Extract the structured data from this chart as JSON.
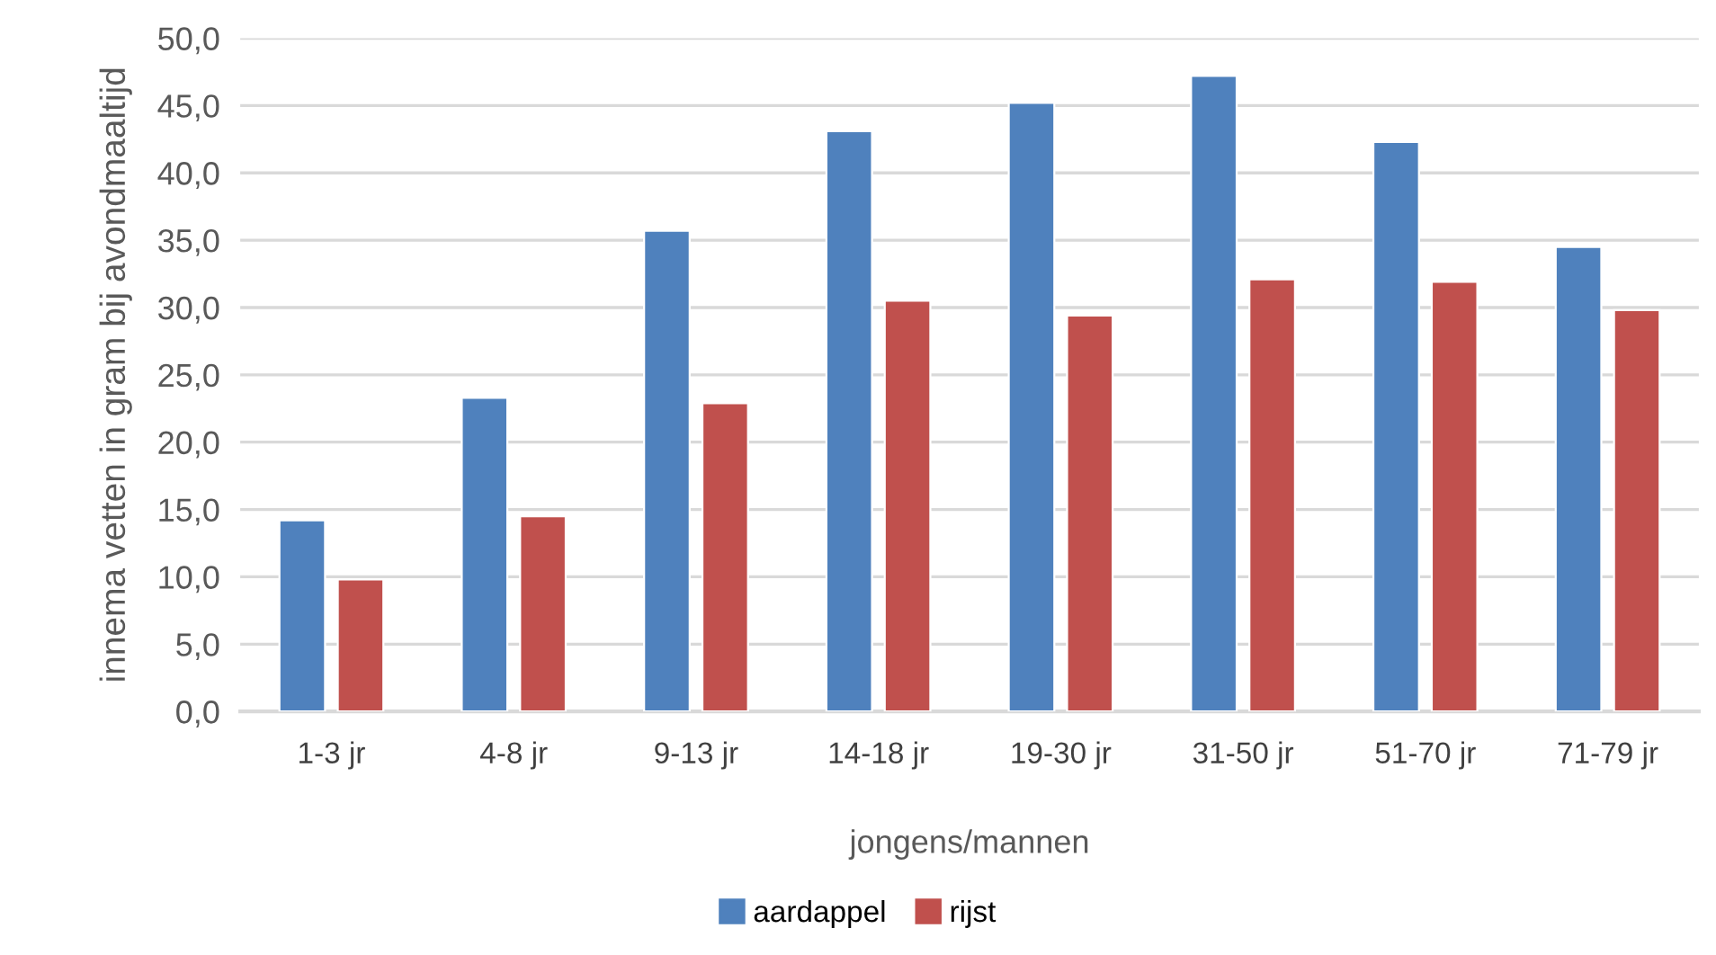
{
  "chart_data": {
    "type": "bar",
    "xlabel": "jongens/mannen",
    "ylabel": "innema vetten in gram bij avondmaaltijd",
    "categories": [
      "1-3 jr",
      "4-8 jr",
      "9-13 jr",
      "14-18 jr",
      "19-30 jr",
      "31-50 jr",
      "51-70 jr",
      "71-79 jr"
    ],
    "series": [
      {
        "name": "aardappel",
        "color": "#4f81bd",
        "values": [
          14.2,
          23.3,
          35.7,
          43.1,
          45.2,
          47.2,
          42.3,
          34.5
        ]
      },
      {
        "name": "rijst",
        "color": "#c0504d",
        "values": [
          9.8,
          14.5,
          22.9,
          30.5,
          29.4,
          32.1,
          31.9,
          29.8
        ]
      }
    ],
    "ylim": [
      0,
      50
    ],
    "yticks": [
      {
        "value": 0,
        "label": "0,0"
      },
      {
        "value": 5,
        "label": "5,0"
      },
      {
        "value": 10,
        "label": "10,0"
      },
      {
        "value": 15,
        "label": "15,0"
      },
      {
        "value": 20,
        "label": "20,0"
      },
      {
        "value": 25,
        "label": "25,0"
      },
      {
        "value": 30,
        "label": "30,0"
      },
      {
        "value": 35,
        "label": "35,0"
      },
      {
        "value": 40,
        "label": "40,0"
      },
      {
        "value": 45,
        "label": "45,0"
      },
      {
        "value": 50,
        "label": "50,0"
      }
    ],
    "grid": "y",
    "legend": "bottom"
  }
}
